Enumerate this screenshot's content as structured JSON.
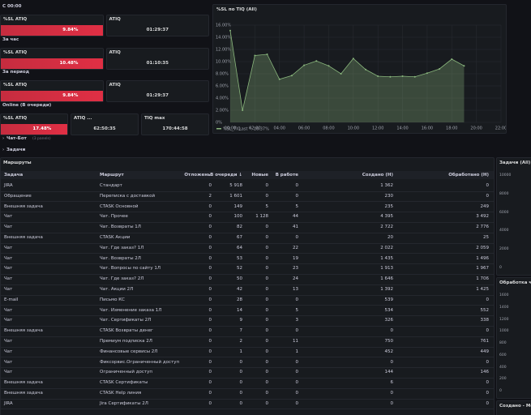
{
  "stats": [
    {
      "title": "С 00:00",
      "panels": [
        {
          "label": "%SL ATIQ",
          "value": "9.84%",
          "color": "#e02f44"
        },
        {
          "label": "ATIQ",
          "value": "01:29:37"
        }
      ]
    },
    {
      "title": "За час",
      "panels": [
        {
          "label": "%SL ATIQ",
          "value": "10.48%",
          "color": "#e02f44"
        },
        {
          "label": "ATIQ",
          "value": "01:10:35"
        }
      ]
    },
    {
      "title": "За период",
      "panels": [
        {
          "label": "%SL ATIQ",
          "value": "9.84%",
          "color": "#e02f44"
        },
        {
          "label": "ATIQ",
          "value": "01:29:37"
        }
      ]
    },
    {
      "title": "Online (В очереди)",
      "panels": [
        {
          "label": "%SL ATIQ",
          "value": "17.48%",
          "color": "#e02f44"
        },
        {
          "label": "ATIQ ...",
          "value": "62:50:35"
        },
        {
          "label": "TIQ max",
          "value": "170:44:58"
        }
      ]
    }
  ],
  "collapsed": [
    {
      "title": "Чат-Бот",
      "note": "(3 panels)"
    },
    {
      "title": "Задачи"
    }
  ],
  "chart_data": {
    "type": "line",
    "title": "%SL по TIQ (All)",
    "x": [
      0,
      1,
      2,
      3,
      4,
      5,
      6,
      7,
      8,
      9,
      10,
      11,
      12,
      13,
      14,
      15,
      16,
      17,
      18,
      19
    ],
    "series": [
      {
        "name": "%SL_TIQ",
        "color": "#8ab77d",
        "values": [
          15.1,
          2,
          11,
          11.2,
          7.1,
          7.7,
          9.4,
          10.1,
          9.3,
          8,
          10.5,
          8.7,
          7.6,
          7.5,
          7.6,
          7.5,
          8.1,
          8.8,
          10.4,
          9.3
        ]
      }
    ],
    "legend_note": "Last *: 10.37%",
    "xlim": [
      0,
      22
    ],
    "xticks": [
      {
        "value": 0,
        "label": "00:00"
      },
      {
        "value": 2,
        "label": "02:00"
      },
      {
        "value": 4,
        "label": "04:00"
      },
      {
        "value": 6,
        "label": "06:00"
      },
      {
        "value": 8,
        "label": "08:00"
      },
      {
        "value": 10,
        "label": "10:00"
      },
      {
        "value": 12,
        "label": "12:00"
      },
      {
        "value": 14,
        "label": "14:00"
      },
      {
        "value": 16,
        "label": "16:00"
      },
      {
        "value": 18,
        "label": "18:00"
      },
      {
        "value": 20,
        "label": "20:00"
      },
      {
        "value": 22,
        "label": "22:00"
      }
    ],
    "ylim": [
      0,
      16
    ],
    "yticks": [
      {
        "value": 0,
        "label": "0%"
      },
      {
        "value": 2,
        "label": "2.00%"
      },
      {
        "value": 4,
        "label": "4.00%"
      },
      {
        "value": 6,
        "label": "6.00%"
      },
      {
        "value": 8,
        "label": "8.00%"
      },
      {
        "value": 10,
        "label": "10.00%"
      },
      {
        "value": 12,
        "label": "12.00%"
      },
      {
        "value": 14,
        "label": "14.00%"
      },
      {
        "value": 16,
        "label": "16.00%"
      }
    ],
    "grid": true
  },
  "table": {
    "title": "Маршруты",
    "columns": [
      "Задача",
      "Маршрут",
      "Отложены",
      "В очереди ↓",
      "Новые",
      "В работе",
      "Создано (Н)",
      "Обработано (Н)"
    ],
    "rows": [
      [
        "JIRA",
        "Стандарт",
        "0",
        "5 918",
        "0",
        "0",
        "1 362",
        "0"
      ],
      [
        "Обращение",
        "Переписка с доставкой",
        "2",
        "1 601",
        "0",
        "0",
        "230",
        "0"
      ],
      [
        "Внешняя задача",
        "CTASK Основной",
        "0",
        "149",
        "5",
        "5",
        "235",
        "249"
      ],
      [
        "Чат",
        "Чат. Прочее",
        "0",
        "100",
        "1 128",
        "44",
        "4 395",
        "3 492"
      ],
      [
        "Чат",
        "Чат. Возвраты 1Л",
        "0",
        "82",
        "0",
        "41",
        "2 722",
        "2 776"
      ],
      [
        "Внешняя задача",
        "CTASK Акции",
        "0",
        "67",
        "0",
        "0",
        "20",
        "25"
      ],
      [
        "Чат",
        "Чат. Где заказ? 1Л",
        "0",
        "64",
        "0",
        "22",
        "2 022",
        "2 059"
      ],
      [
        "Чат",
        "Чат. Возвраты 2Л",
        "0",
        "53",
        "0",
        "19",
        "1 435",
        "1 496"
      ],
      [
        "Чат",
        "Чат. Вопросы по сайту 1Л",
        "0",
        "52",
        "0",
        "23",
        "1 913",
        "1 967"
      ],
      [
        "Чат",
        "Чат. Где заказ? 2Л",
        "0",
        "50",
        "0",
        "24",
        "1 646",
        "1 706"
      ],
      [
        "Чат",
        "Чат. Акции 2Л",
        "0",
        "42",
        "0",
        "13",
        "1 392",
        "1 425"
      ],
      [
        "E-mail",
        "Письмо КС",
        "0",
        "28",
        "0",
        "0",
        "539",
        "0"
      ],
      [
        "Чат",
        "Чат. Изменение заказа 1Л",
        "0",
        "14",
        "0",
        "5",
        "534",
        "552"
      ],
      [
        "Чат",
        "Чат. Сертификаты 2Л",
        "0",
        "9",
        "0",
        "3",
        "326",
        "338"
      ],
      [
        "Внешняя задача",
        "CTASK Возвраты денег",
        "0",
        "7",
        "0",
        "0",
        "0",
        "0"
      ],
      [
        "Чат",
        "Премиум подписка 2Л",
        "0",
        "2",
        "0",
        "11",
        "750",
        "761"
      ],
      [
        "Чат",
        "Финансовые сервисы 2Л",
        "0",
        "1",
        "0",
        "1",
        "452",
        "449"
      ],
      [
        "Чат",
        "Фиксорвис.Ограниченный доступ",
        "0",
        "0",
        "0",
        "0",
        "0",
        "0"
      ],
      [
        "Чат",
        "Ограниченный доступ",
        "0",
        "0",
        "0",
        "0",
        "144",
        "146"
      ],
      [
        "Внешняя задача",
        "CTASK Сертификаты",
        "0",
        "0",
        "0",
        "0",
        "6",
        "0"
      ],
      [
        "Внешняя задача",
        "CTASK Help линия",
        "0",
        "0",
        "0",
        "0",
        "0",
        "0"
      ],
      [
        "JIRA",
        "Jira Сертификаты 2Л",
        "0",
        "0",
        "0",
        "0",
        "0",
        "0"
      ]
    ]
  },
  "side": {
    "panels": [
      {
        "title": "Задачи (All)",
        "ticks": [
          "10000",
          "8000",
          "6000",
          "4000",
          "2000",
          "0"
        ]
      },
      {
        "title": "Обработка чат",
        "ticks": [
          "1600",
          "1400",
          "1200",
          "1000",
          "800",
          "600",
          "400",
          "200",
          "0"
        ]
      },
      {
        "title": "Создано - Мод"
      }
    ]
  }
}
